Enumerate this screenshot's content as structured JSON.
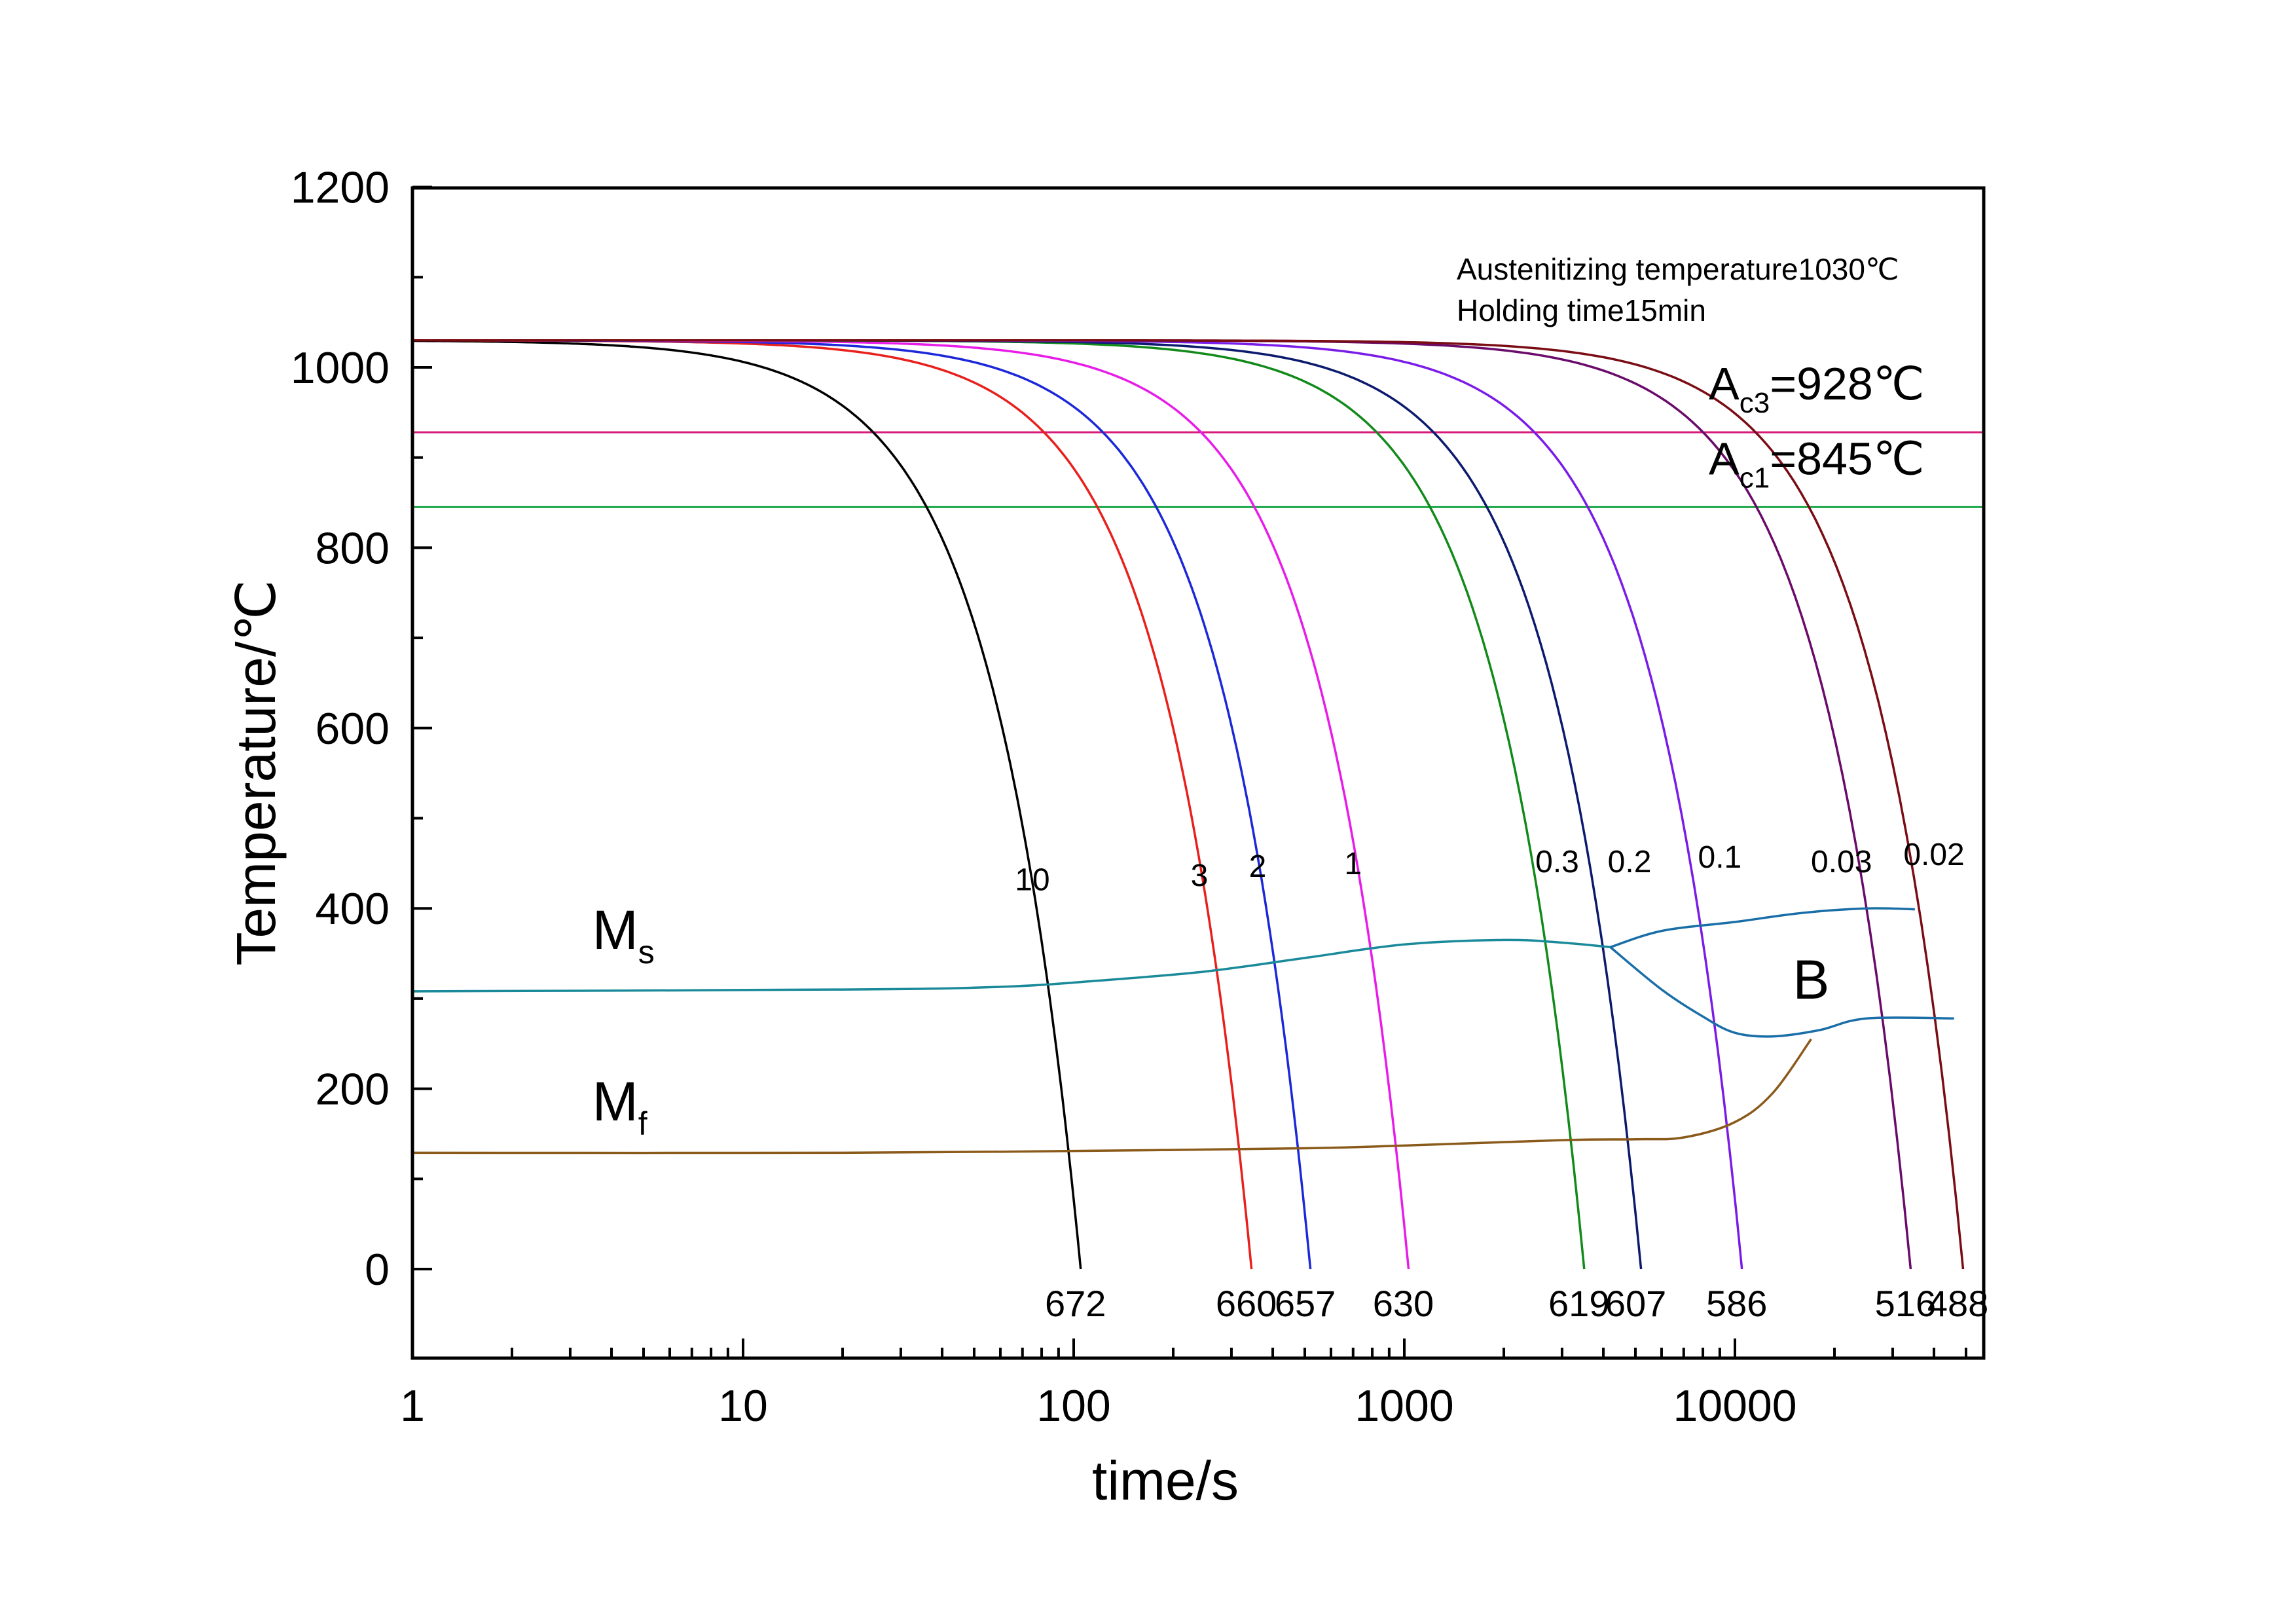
{
  "chart_data": {
    "type": "line",
    "title": "",
    "xlabel": "time/s",
    "ylabel": "Temperature/℃",
    "xscale": "log",
    "xlim": [
      1,
      60000
    ],
    "ylim": [
      -100,
      1200
    ],
    "xticks": [
      {
        "value": 1,
        "label": "1"
      },
      {
        "value": 10,
        "label": "10"
      },
      {
        "value": 100,
        "label": "100"
      },
      {
        "value": 1000,
        "label": "1000"
      },
      {
        "value": 10000,
        "label": "10000"
      }
    ],
    "yticks": [
      {
        "value": 0,
        "label": "0"
      },
      {
        "value": 200,
        "label": "200"
      },
      {
        "value": 400,
        "label": "400"
      },
      {
        "value": 600,
        "label": "600"
      },
      {
        "value": 800,
        "label": "800"
      },
      {
        "value": 1000,
        "label": "1000"
      },
      {
        "value": 1200,
        "label": "1200"
      }
    ],
    "annotations": {
      "austenitizing": "Austenitizing temperature1030℃",
      "holding": "Holding time15min",
      "region_b": "B"
    },
    "critical_lines": [
      {
        "name": "Ac3",
        "prefix": "A",
        "sub": "c3",
        "suffix": "=928℃",
        "value": 928,
        "color": "#d81b7a"
      },
      {
        "name": "Ac1",
        "prefix": "A",
        "sub": "c1",
        "suffix": "=845℃",
        "value": 845,
        "color": "#1fa84a"
      }
    ],
    "cooling_curves": [
      {
        "rate": "10",
        "end_time": 105,
        "t_end": 0,
        "hardness": "672",
        "color": "#000000",
        "label_time": 75,
        "label_temp": 420
      },
      {
        "rate": "3",
        "end_time": 345,
        "t_end": 0,
        "hardness": "660",
        "color": "#e8201c",
        "label_time": 240,
        "label_temp": 425
      },
      {
        "rate": "2",
        "end_time": 520,
        "t_end": 0,
        "hardness": "657",
        "color": "#1c28d8",
        "label_time": 360,
        "label_temp": 435
      },
      {
        "rate": "1",
        "end_time": 1030,
        "t_end": 0,
        "hardness": "630",
        "color": "#e81ce8",
        "label_time": 700,
        "label_temp": 438
      },
      {
        "rate": "0.3",
        "end_time": 3500,
        "t_end": 0,
        "hardness": "619",
        "color": "#118a1a",
        "label_time": 2900,
        "label_temp": 440
      },
      {
        "rate": "0.2",
        "end_time": 5200,
        "t_end": 0,
        "hardness": "607",
        "color": "#0c1a6e",
        "label_time": 4800,
        "label_temp": 440
      },
      {
        "rate": "0.1",
        "end_time": 10500,
        "t_end": 0,
        "hardness": "586",
        "color": "#7a1ce8",
        "label_time": 9000,
        "label_temp": 445
      },
      {
        "rate": "0.03",
        "end_time": 34000,
        "t_end": 0,
        "hardness": "516",
        "color": "#6a0a6a",
        "label_time": 21000,
        "label_temp": 440
      },
      {
        "rate": "0.02",
        "end_time": 49000,
        "t_end": 0,
        "hardness": "488",
        "color": "#7a0c14",
        "label_time": 40000,
        "label_temp": 448
      }
    ],
    "transformation_lines": [
      {
        "name": "Ms",
        "main": "M",
        "sub": "s",
        "color": "#1a8a9a",
        "points": [
          [
            1,
            308
          ],
          [
            20,
            310
          ],
          [
            60,
            313
          ],
          [
            120,
            320
          ],
          [
            250,
            330
          ],
          [
            500,
            345
          ],
          [
            1000,
            360
          ],
          [
            2000,
            365
          ],
          [
            3000,
            362
          ],
          [
            4200,
            357
          ]
        ],
        "label_time": 3.5,
        "label_temp": 355
      },
      {
        "name": "Mf",
        "main": "M",
        "sub": "f",
        "color": "#8a5a1a",
        "points": [
          [
            1,
            129
          ],
          [
            20,
            129
          ],
          [
            100,
            131
          ],
          [
            500,
            134
          ],
          [
            1000,
            137
          ],
          [
            3000,
            143
          ],
          [
            5000,
            144
          ],
          [
            7000,
            146
          ],
          [
            10000,
            163
          ],
          [
            13000,
            195
          ],
          [
            17000,
            255
          ]
        ],
        "label_time": 3.5,
        "label_temp": 165
      },
      {
        "name": "B region",
        "color": "#1a6ea8",
        "points_upper": [
          [
            4200,
            357
          ],
          [
            6000,
            375
          ],
          [
            10000,
            385
          ],
          [
            16000,
            395
          ],
          [
            25000,
            400
          ],
          [
            35000,
            399
          ]
        ],
        "points_lower": [
          [
            4200,
            357
          ],
          [
            6000,
            310
          ],
          [
            8000,
            280
          ],
          [
            10000,
            262
          ],
          [
            13000,
            258
          ],
          [
            18000,
            265
          ],
          [
            25000,
            278
          ],
          [
            46000,
            278
          ]
        ]
      }
    ]
  }
}
